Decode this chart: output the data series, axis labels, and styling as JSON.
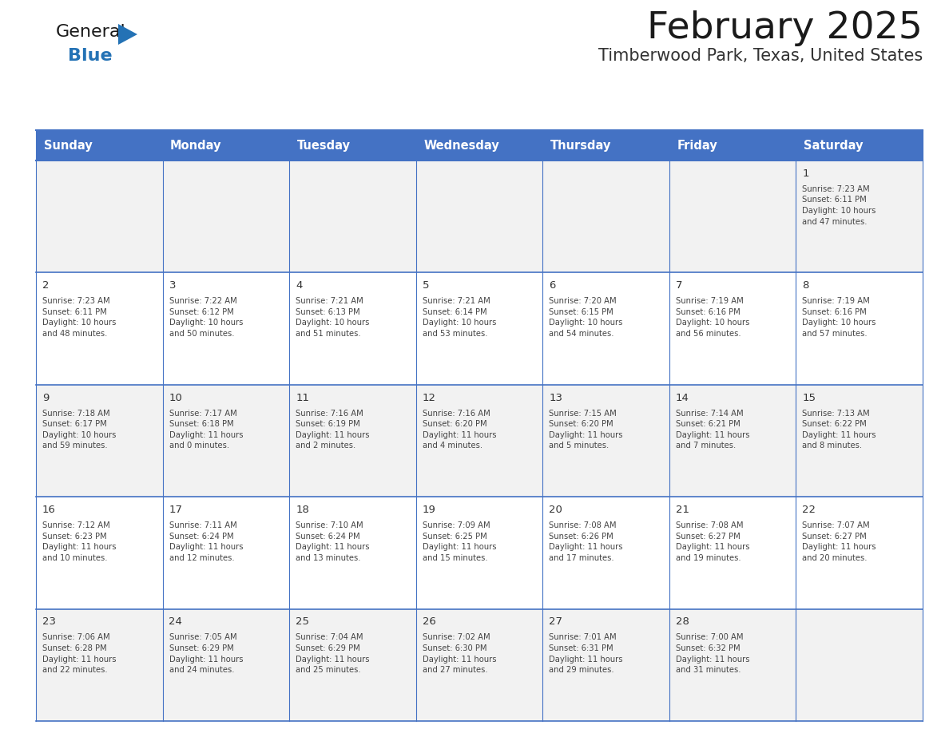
{
  "title": "February 2025",
  "subtitle": "Timberwood Park, Texas, United States",
  "header_bg": "#4472C4",
  "header_text_color": "#FFFFFF",
  "cell_bg_odd": "#F2F2F2",
  "cell_bg_even": "#FFFFFF",
  "border_color": "#4472C4",
  "row_line_color": "#4472C4",
  "day_headers": [
    "Sunday",
    "Monday",
    "Tuesday",
    "Wednesday",
    "Thursday",
    "Friday",
    "Saturday"
  ],
  "title_color": "#1a1a1a",
  "subtitle_color": "#333333",
  "day_number_color": "#333333",
  "text_color": "#444444",
  "logo_general_color": "#1a1a1a",
  "logo_blue_color": "#2472b5",
  "logo_triangle_color": "#2472b5",
  "weeks": [
    [
      {
        "day": null,
        "info": null
      },
      {
        "day": null,
        "info": null
      },
      {
        "day": null,
        "info": null
      },
      {
        "day": null,
        "info": null
      },
      {
        "day": null,
        "info": null
      },
      {
        "day": null,
        "info": null
      },
      {
        "day": 1,
        "info": "Sunrise: 7:23 AM\nSunset: 6:11 PM\nDaylight: 10 hours\nand 47 minutes."
      }
    ],
    [
      {
        "day": 2,
        "info": "Sunrise: 7:23 AM\nSunset: 6:11 PM\nDaylight: 10 hours\nand 48 minutes."
      },
      {
        "day": 3,
        "info": "Sunrise: 7:22 AM\nSunset: 6:12 PM\nDaylight: 10 hours\nand 50 minutes."
      },
      {
        "day": 4,
        "info": "Sunrise: 7:21 AM\nSunset: 6:13 PM\nDaylight: 10 hours\nand 51 minutes."
      },
      {
        "day": 5,
        "info": "Sunrise: 7:21 AM\nSunset: 6:14 PM\nDaylight: 10 hours\nand 53 minutes."
      },
      {
        "day": 6,
        "info": "Sunrise: 7:20 AM\nSunset: 6:15 PM\nDaylight: 10 hours\nand 54 minutes."
      },
      {
        "day": 7,
        "info": "Sunrise: 7:19 AM\nSunset: 6:16 PM\nDaylight: 10 hours\nand 56 minutes."
      },
      {
        "day": 8,
        "info": "Sunrise: 7:19 AM\nSunset: 6:16 PM\nDaylight: 10 hours\nand 57 minutes."
      }
    ],
    [
      {
        "day": 9,
        "info": "Sunrise: 7:18 AM\nSunset: 6:17 PM\nDaylight: 10 hours\nand 59 minutes."
      },
      {
        "day": 10,
        "info": "Sunrise: 7:17 AM\nSunset: 6:18 PM\nDaylight: 11 hours\nand 0 minutes."
      },
      {
        "day": 11,
        "info": "Sunrise: 7:16 AM\nSunset: 6:19 PM\nDaylight: 11 hours\nand 2 minutes."
      },
      {
        "day": 12,
        "info": "Sunrise: 7:16 AM\nSunset: 6:20 PM\nDaylight: 11 hours\nand 4 minutes."
      },
      {
        "day": 13,
        "info": "Sunrise: 7:15 AM\nSunset: 6:20 PM\nDaylight: 11 hours\nand 5 minutes."
      },
      {
        "day": 14,
        "info": "Sunrise: 7:14 AM\nSunset: 6:21 PM\nDaylight: 11 hours\nand 7 minutes."
      },
      {
        "day": 15,
        "info": "Sunrise: 7:13 AM\nSunset: 6:22 PM\nDaylight: 11 hours\nand 8 minutes."
      }
    ],
    [
      {
        "day": 16,
        "info": "Sunrise: 7:12 AM\nSunset: 6:23 PM\nDaylight: 11 hours\nand 10 minutes."
      },
      {
        "day": 17,
        "info": "Sunrise: 7:11 AM\nSunset: 6:24 PM\nDaylight: 11 hours\nand 12 minutes."
      },
      {
        "day": 18,
        "info": "Sunrise: 7:10 AM\nSunset: 6:24 PM\nDaylight: 11 hours\nand 13 minutes."
      },
      {
        "day": 19,
        "info": "Sunrise: 7:09 AM\nSunset: 6:25 PM\nDaylight: 11 hours\nand 15 minutes."
      },
      {
        "day": 20,
        "info": "Sunrise: 7:08 AM\nSunset: 6:26 PM\nDaylight: 11 hours\nand 17 minutes."
      },
      {
        "day": 21,
        "info": "Sunrise: 7:08 AM\nSunset: 6:27 PM\nDaylight: 11 hours\nand 19 minutes."
      },
      {
        "day": 22,
        "info": "Sunrise: 7:07 AM\nSunset: 6:27 PM\nDaylight: 11 hours\nand 20 minutes."
      }
    ],
    [
      {
        "day": 23,
        "info": "Sunrise: 7:06 AM\nSunset: 6:28 PM\nDaylight: 11 hours\nand 22 minutes."
      },
      {
        "day": 24,
        "info": "Sunrise: 7:05 AM\nSunset: 6:29 PM\nDaylight: 11 hours\nand 24 minutes."
      },
      {
        "day": 25,
        "info": "Sunrise: 7:04 AM\nSunset: 6:29 PM\nDaylight: 11 hours\nand 25 minutes."
      },
      {
        "day": 26,
        "info": "Sunrise: 7:02 AM\nSunset: 6:30 PM\nDaylight: 11 hours\nand 27 minutes."
      },
      {
        "day": 27,
        "info": "Sunrise: 7:01 AM\nSunset: 6:31 PM\nDaylight: 11 hours\nand 29 minutes."
      },
      {
        "day": 28,
        "info": "Sunrise: 7:00 AM\nSunset: 6:32 PM\nDaylight: 11 hours\nand 31 minutes."
      },
      {
        "day": null,
        "info": null
      }
    ]
  ]
}
